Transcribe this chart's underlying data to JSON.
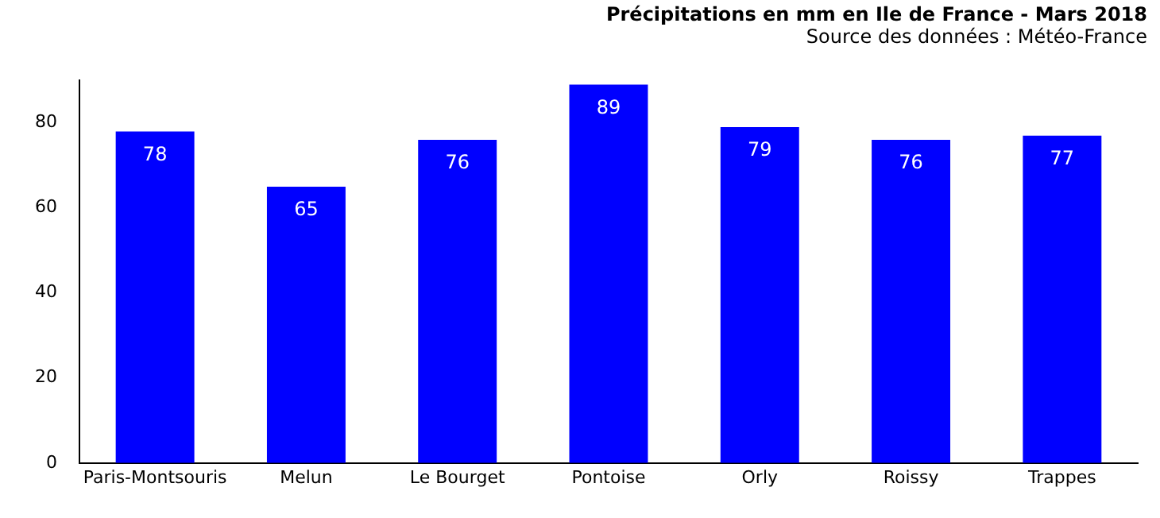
{
  "chart_data": {
    "type": "bar",
    "title": "Précipitations en mm en Ile de France - Mars 2018",
    "subtitle": "Source des données : Météo-France",
    "categories": [
      "Paris-Montsouris",
      "Melun",
      "Le Bourget",
      "Pontoise",
      "Orly",
      "Roissy",
      "Trappes"
    ],
    "values": [
      78,
      65,
      76,
      89,
      79,
      76,
      77
    ],
    "color": "#0000ff",
    "ylim": [
      0,
      90
    ],
    "yticks": [
      0,
      20,
      40,
      60,
      80
    ],
    "grid": false,
    "data_labels": true
  }
}
